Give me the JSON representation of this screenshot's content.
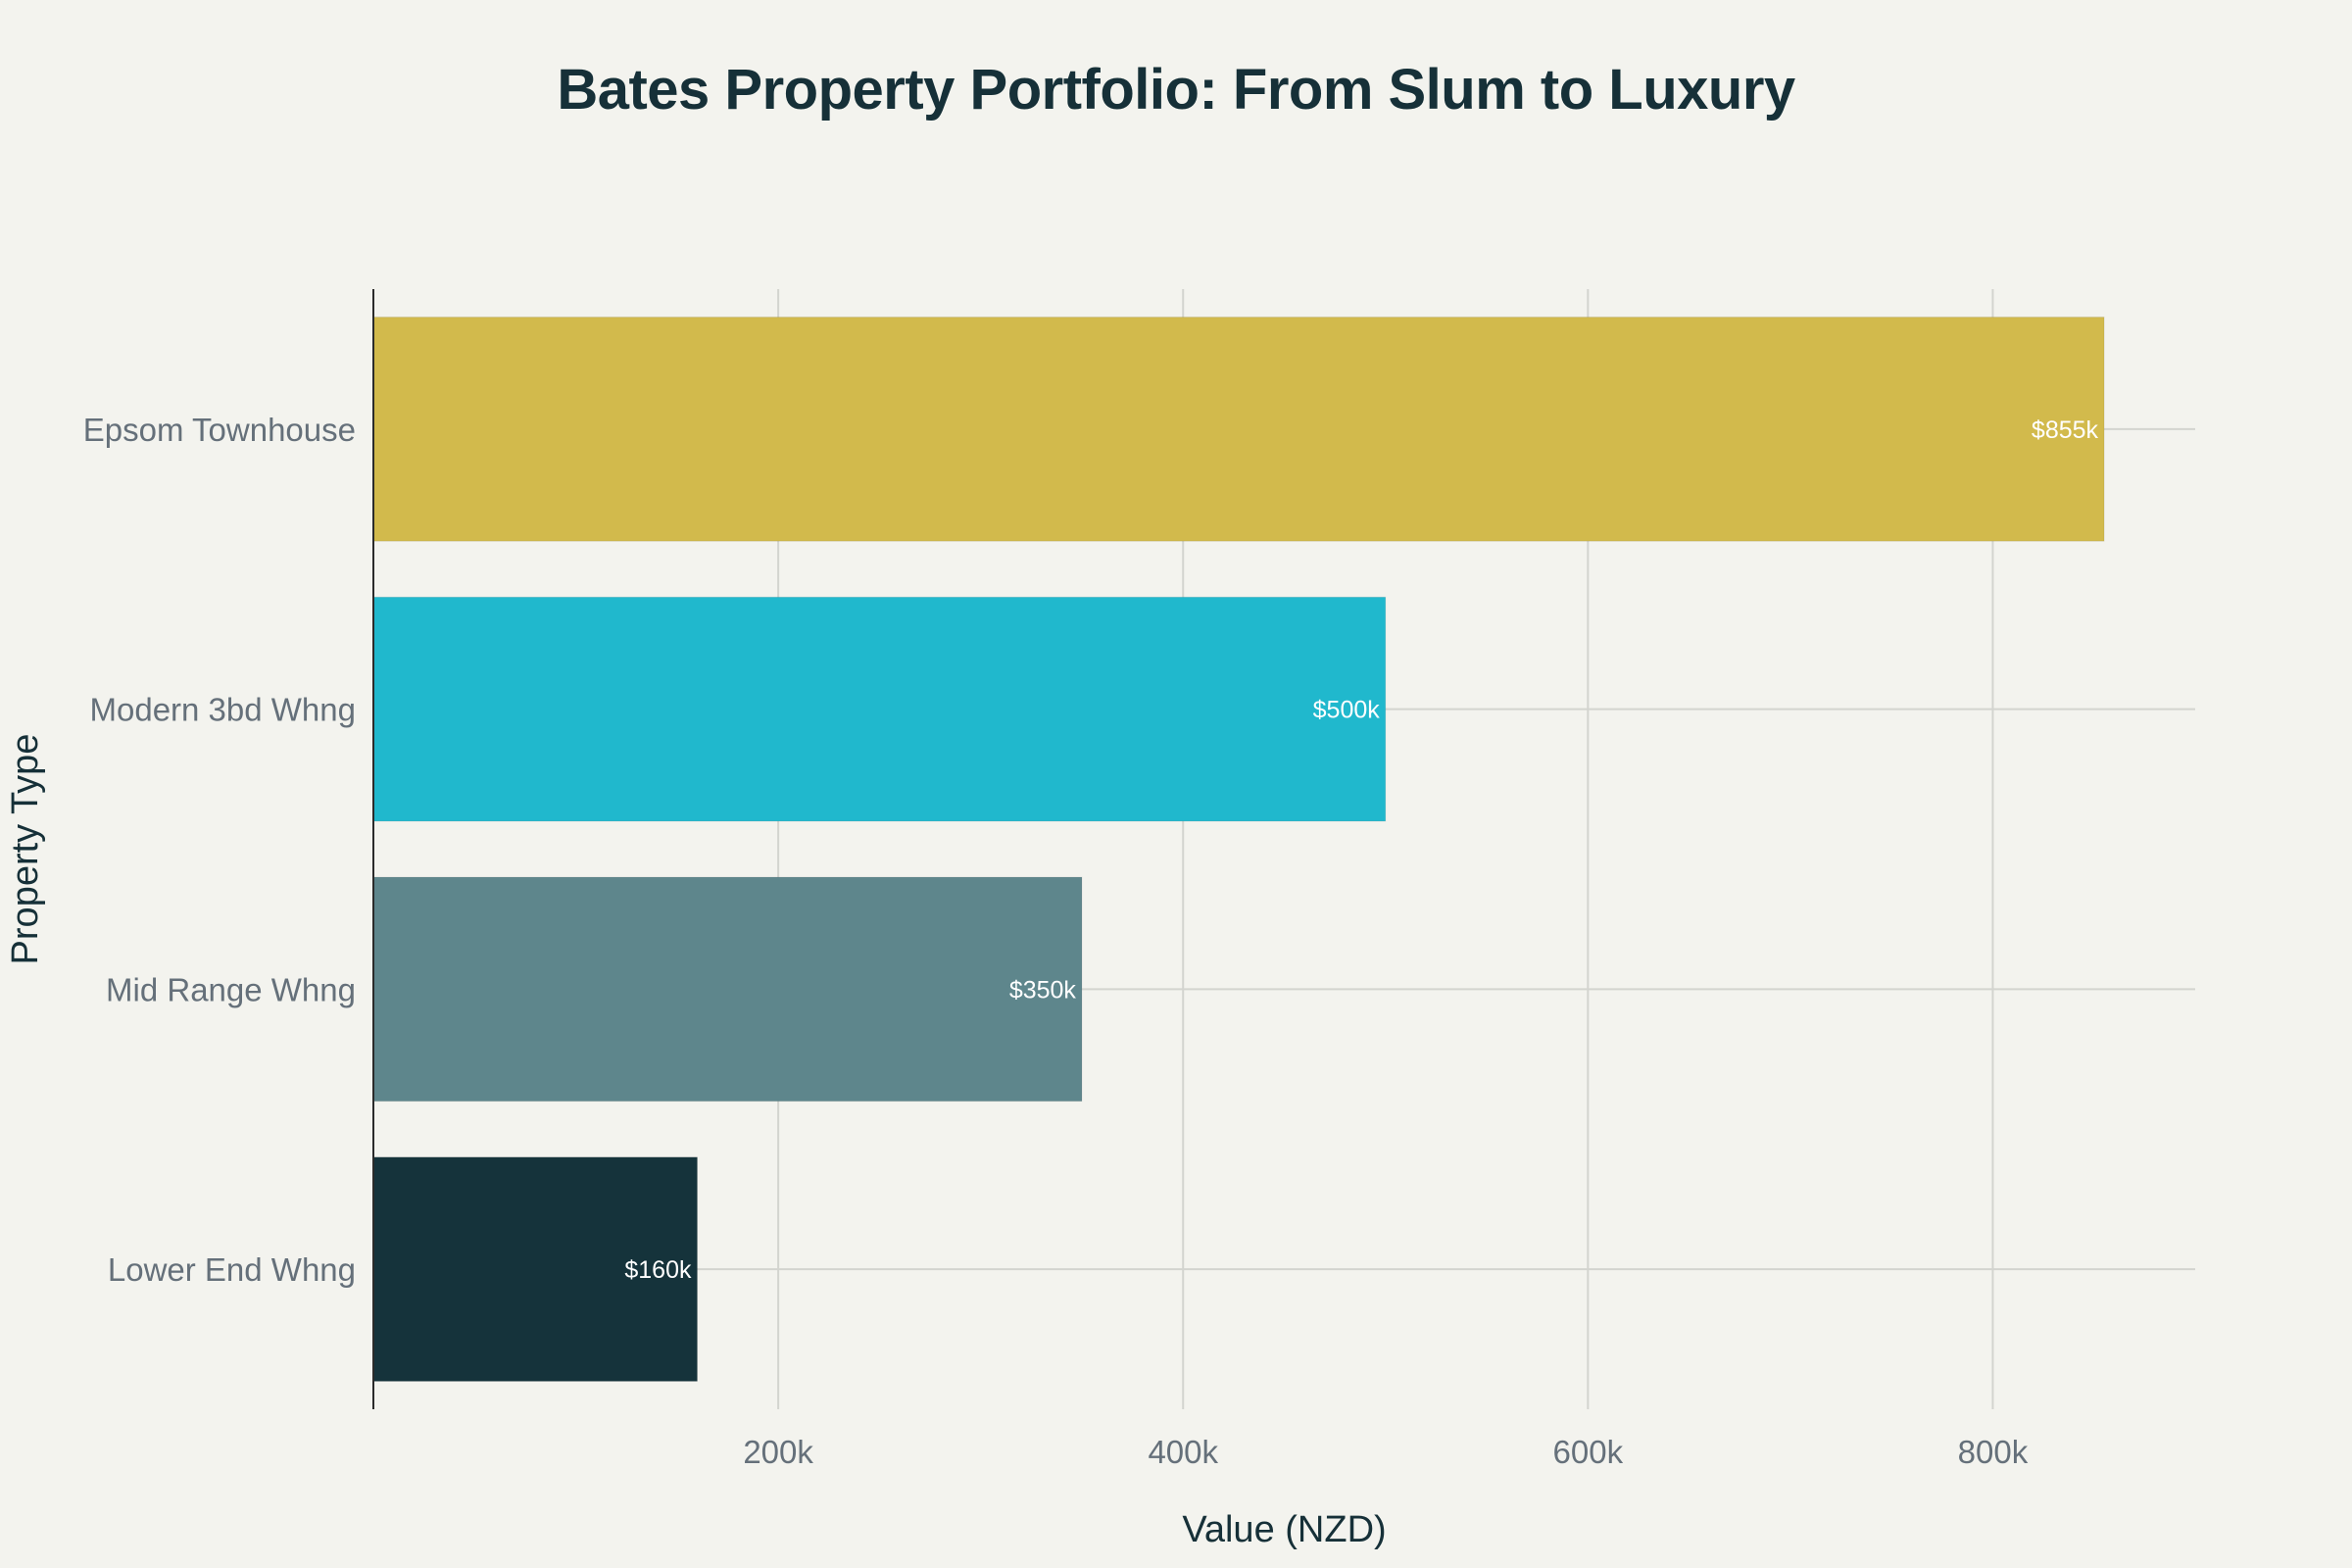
{
  "chart_data": {
    "type": "bar",
    "orientation": "horizontal",
    "title": "Bates Property Portfolio: From Slum to Luxury",
    "xlabel": "Value (NZD)",
    "ylabel": "Property Type",
    "categories": [
      "Lower End Whng",
      "Mid Range Whng",
      "Modern 3bd Whng",
      "Epsom Townhouse"
    ],
    "values": [
      160000,
      350000,
      500000,
      855000
    ],
    "data_labels": [
      "$160k",
      "$350k",
      "$500k",
      "$855k"
    ],
    "colors": [
      "#15333b",
      "#5e868c",
      "#20b8cd",
      "#d2ba4c"
    ],
    "xlim": [
      0,
      900000
    ],
    "xticks": [
      200000,
      400000,
      600000,
      800000
    ],
    "xtick_labels": [
      "200k",
      "400k",
      "600k",
      "800k"
    ],
    "grid": true,
    "legend": "none"
  }
}
